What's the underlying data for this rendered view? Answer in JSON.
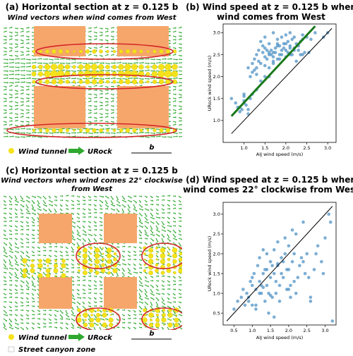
{
  "panels": [
    {
      "id": "a",
      "title_line1": "(a) Horizontal section at z = 0.125 b",
      "subtitle_line1": "Wind vectors when wind comes from West",
      "legend": {
        "wind_tunnel": "Wind tunnel",
        "urock": "URock",
        "scale": "b"
      }
    },
    {
      "id": "b",
      "title_line1": "(b) Wind speed at z = 0.125 b when",
      "title_line2": "wind comes from West"
    },
    {
      "id": "c",
      "title_line1": "(c) Horizontal section at z = 0.125 b",
      "subtitle_line1": "Wind vectors when wind comes 22° clockwise",
      "subtitle_line2": "from West",
      "legend": {
        "wind_tunnel": "Wind tunnel",
        "urock": "URock",
        "scale": "b",
        "canyon": "Street canyon zone"
      }
    },
    {
      "id": "d",
      "title_line1": "(d) Wind speed at z = 0.125 b when",
      "title_line2": "wind comes 22° clockwise from West"
    }
  ],
  "colors": {
    "building": "#f6a66b",
    "urock_arrow": "#2ea82e",
    "tunnel_dot": "#f5e21a",
    "ellipse": "#d4262a",
    "scatter": "#4a8fc4",
    "fit_line": "#1a7a1a"
  },
  "chart_data": [
    {
      "type": "scatter",
      "panel": "b",
      "xlabel": "AIJ  wind speed (m/s)",
      "ylabel": "URock  wind speed (m/s)",
      "xlim": [
        0.5,
        3.2
      ],
      "ylim": [
        0.5,
        3.2
      ],
      "xticks": [
        "1.0",
        "1.5",
        "2.0",
        "2.5",
        "3.0"
      ],
      "yticks": [
        "1.0",
        "1.5",
        "2.0",
        "2.5",
        "3.0"
      ],
      "reference_line": {
        "x": [
          0.7,
          3.1
        ],
        "y": [
          0.7,
          3.1
        ]
      },
      "fit_line": {
        "x": [
          0.7,
          2.7
        ],
        "y": [
          1.1,
          3.15
        ]
      },
      "x": [
        0.7,
        0.8,
        0.85,
        0.9,
        0.95,
        1.0,
        1.0,
        1.05,
        1.1,
        1.1,
        1.15,
        1.2,
        1.2,
        1.25,
        1.3,
        1.3,
        1.35,
        1.4,
        1.4,
        1.45,
        1.5,
        1.5,
        1.55,
        1.6,
        1.6,
        1.65,
        1.7,
        1.7,
        1.75,
        1.8,
        1.8,
        1.85,
        1.9,
        1.9,
        1.95,
        2.0,
        2.0,
        2.05,
        2.1,
        2.1,
        2.15,
        2.2,
        2.2,
        2.25,
        2.3,
        2.35,
        2.4,
        2.4,
        2.5,
        2.6,
        2.7,
        0.9,
        1.0,
        1.1,
        1.2,
        1.3,
        1.35,
        1.45,
        1.5,
        1.55,
        1.6,
        1.65,
        1.7,
        1.75,
        1.8,
        1.85,
        1.9,
        1.95,
        2.0,
        2.05,
        2.1,
        2.15,
        2.2,
        2.3,
        2.35,
        2.45,
        1.0,
        1.15,
        1.25,
        1.4,
        1.5,
        1.6,
        1.7,
        1.8,
        2.0,
        2.1,
        2.25,
        2.4,
        2.55,
        2.9,
        3.0,
        1.3,
        1.5,
        1.6,
        1.7,
        1.85
      ],
      "y": [
        1.5,
        1.4,
        1.3,
        1.2,
        1.25,
        1.45,
        1.6,
        1.35,
        1.25,
        1.15,
        1.5,
        1.6,
        2.3,
        2.4,
        1.7,
        2.5,
        2.6,
        1.9,
        2.8,
        2.7,
        2.0,
        2.9,
        2.6,
        2.2,
        2.75,
        2.5,
        2.3,
        3.0,
        2.65,
        2.4,
        2.85,
        2.7,
        2.5,
        2.9,
        2.75,
        2.6,
        2.95,
        2.8,
        2.65,
        3.0,
        2.85,
        2.6,
        2.9,
        2.75,
        2.7,
        2.8,
        2.85,
        2.95,
        2.9,
        2.85,
        3.0,
        1.3,
        1.4,
        2.2,
        2.1,
        2.2,
        2.35,
        2.55,
        2.65,
        2.4,
        2.5,
        2.6,
        2.45,
        2.55,
        2.7,
        2.5,
        2.6,
        2.65,
        2.75,
        2.55,
        2.7,
        2.5,
        2.65,
        2.6,
        2.5,
        2.55,
        1.55,
        2.0,
        2.15,
        2.3,
        2.45,
        2.55,
        2.55,
        2.75,
        2.45,
        2.5,
        2.35,
        2.5,
        2.55,
        2.9,
        3.0,
        2.05,
        2.25,
        2.0,
        2.35,
        2.4
      ]
    },
    {
      "type": "scatter",
      "panel": "d",
      "xlabel": "AIJ  wind speed (m/s)",
      "ylabel": "URock  wind speed (m/s)",
      "xlim": [
        0.2,
        3.3
      ],
      "ylim": [
        0.2,
        3.3
      ],
      "xticks": [
        "0.5",
        "1.0",
        "1.5",
        "2.0",
        "2.5",
        "3.0"
      ],
      "yticks": [
        "0.5",
        "1.0",
        "1.5",
        "2.0",
        "2.5",
        "3.0"
      ],
      "reference_line": {
        "x": [
          0.3,
          3.2
        ],
        "y": [
          0.3,
          3.2
        ]
      },
      "x": [
        0.5,
        0.6,
        0.7,
        0.75,
        0.8,
        0.85,
        0.9,
        0.95,
        1.0,
        1.0,
        1.05,
        1.1,
        1.1,
        1.15,
        1.2,
        1.2,
        1.25,
        1.3,
        1.3,
        1.35,
        1.4,
        1.4,
        1.45,
        1.5,
        1.5,
        1.55,
        1.6,
        1.6,
        1.65,
        1.7,
        1.7,
        1.75,
        1.8,
        1.85,
        1.9,
        1.95,
        2.0,
        2.0,
        2.05,
        2.1,
        2.15,
        2.2,
        2.25,
        2.3,
        2.4,
        2.45,
        2.5,
        2.6,
        2.7,
        2.8,
        2.9,
        3.0,
        3.1,
        3.2,
        0.9,
        1.0,
        1.1,
        1.25,
        1.35,
        1.45,
        1.55,
        1.65,
        1.75,
        1.85,
        1.95,
        2.05,
        2.15,
        2.35,
        2.55,
        2.75,
        2.95,
        3.15,
        1.2,
        1.4,
        1.6,
        1.8,
        2.0,
        2.2,
        2.4,
        2.6,
        2.1,
        1.9,
        1.7,
        1.5,
        1.3
      ],
      "y": [
        0.6,
        0.8,
        0.9,
        1.1,
        0.7,
        1.0,
        0.9,
        1.3,
        0.7,
        1.2,
        1.5,
        1.1,
        0.6,
        1.7,
        1.3,
        1.9,
        1.0,
        1.5,
        2.1,
        0.8,
        1.6,
        1.2,
        0.5,
        1.8,
        1.4,
        0.9,
        2.1,
        1.5,
        1.0,
        1.7,
        2.3,
        1.2,
        1.9,
        1.4,
        2.0,
        1.1,
        2.2,
        1.6,
        0.9,
        1.8,
        1.3,
        2.5,
        1.4,
        1.7,
        2.8,
        1.5,
        2.0,
        0.8,
        1.6,
        2.2,
        1.8,
        2.4,
        3.0,
        0.3,
        0.8,
        1.4,
        0.7,
        1.2,
        1.6,
        1.0,
        1.7,
        1.3,
        0.8,
        1.8,
        1.6,
        1.2,
        2.0,
        1.9,
        1.4,
        2.0,
        1.5,
        2.8,
        1.0,
        2.0,
        0.4,
        1.5,
        1.1,
        1.0,
        1.8,
        0.9,
        2.6,
        2.4,
        1.75,
        0.95,
        1.15
      ]
    }
  ]
}
